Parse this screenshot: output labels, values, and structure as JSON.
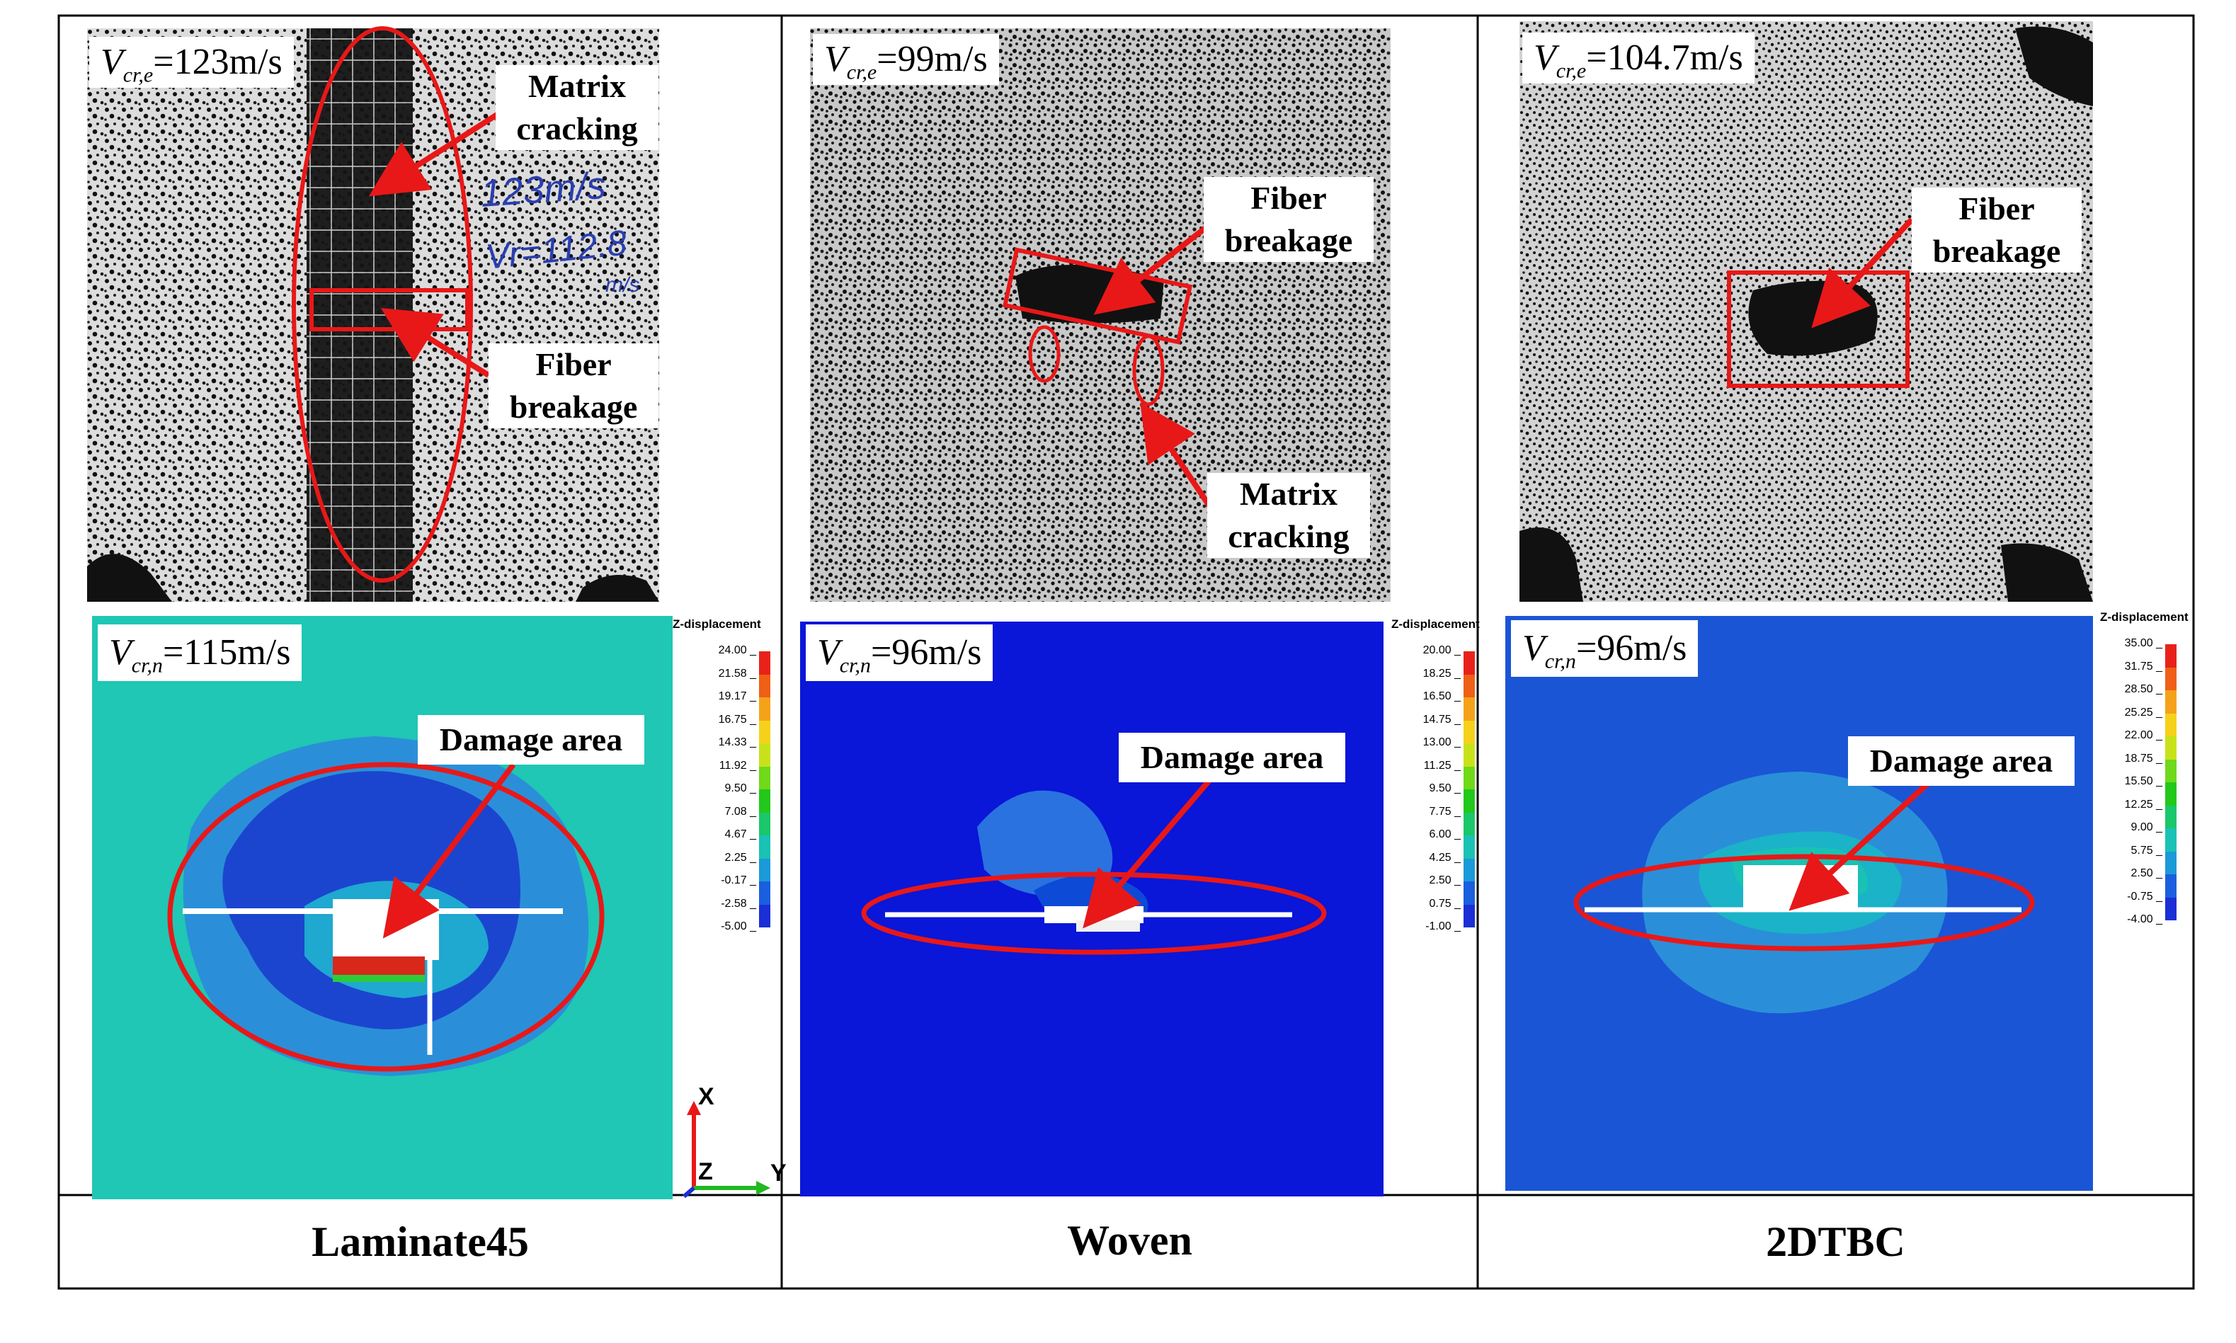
{
  "columns": [
    {
      "name": "Laminate45",
      "v_exp": {
        "symbol": "V",
        "sub": "cr,e",
        "value": "=123m/s"
      },
      "v_num": {
        "symbol": "V",
        "sub": "cr,n",
        "value": "=115m/s"
      },
      "photo_labels": {
        "top": [
          "Matrix",
          "cracking"
        ],
        "bottom": [
          "Fiber",
          "breakage"
        ]
      },
      "handwriting": [
        "123m/s",
        "Vr=112.8",
        "m/s"
      ],
      "damage_label": "Damage area",
      "legend": {
        "title": "Z-displacement",
        "ticks": [
          "24.00",
          "21.58",
          "19.17",
          "16.75",
          "14.33",
          "11.92",
          "9.50",
          "7.08",
          "4.67",
          "2.25",
          "-0.17",
          "-2.58",
          "-5.00"
        ]
      }
    },
    {
      "name": "Woven",
      "v_exp": {
        "symbol": "V",
        "sub": "cr,e",
        "value": "=99m/s"
      },
      "v_num": {
        "symbol": "V",
        "sub": "cr,n",
        "value": "=96m/s"
      },
      "photo_labels": {
        "top": [
          "Fiber",
          "breakage"
        ],
        "bottom": [
          "Matrix",
          "cracking"
        ]
      },
      "damage_label": "Damage area",
      "legend": {
        "title": "Z-displacement",
        "ticks": [
          "20.00",
          "18.25",
          "16.50",
          "14.75",
          "13.00",
          "11.25",
          "9.50",
          "7.75",
          "6.00",
          "4.25",
          "2.50",
          "0.75",
          "-1.00"
        ]
      }
    },
    {
      "name": "2DTBC",
      "v_exp": {
        "symbol": "V",
        "sub": "cr,e",
        "value": "=104.7m/s"
      },
      "v_num": {
        "symbol": "V",
        "sub": "cr,n",
        "value": "=96m/s"
      },
      "photo_labels": {
        "top": [
          "Fiber",
          "breakage"
        ]
      },
      "damage_label": "Damage area",
      "legend": {
        "title": "Z-displacement",
        "ticks": [
          "35.00",
          "31.75",
          "28.50",
          "25.25",
          "22.00",
          "18.75",
          "15.50",
          "12.25",
          "9.00",
          "5.75",
          "2.50",
          "-0.75",
          "-4.00"
        ]
      }
    }
  ],
  "axes_triad": {
    "x": "X",
    "y": "Y",
    "z": "Z"
  },
  "colors": {
    "annotation_red": "#e81818",
    "laminate_bg": "#1fc7b4",
    "woven_bg": "#0a16d8",
    "tbc_bg": "#1a55d6",
    "contour_dark_blue": "#1b45cf",
    "contour_mid_blue": "#2a8fd8",
    "contour_teal": "#26b9b0",
    "legend_scale": [
      "#e8221a",
      "#ef5f16",
      "#f4a21a",
      "#f6d11a",
      "#c8e21a",
      "#6fd91a",
      "#22c81a",
      "#1ac76a",
      "#19c2b4",
      "#1a9ad8",
      "#1a5fde",
      "#1a2fd6"
    ]
  }
}
